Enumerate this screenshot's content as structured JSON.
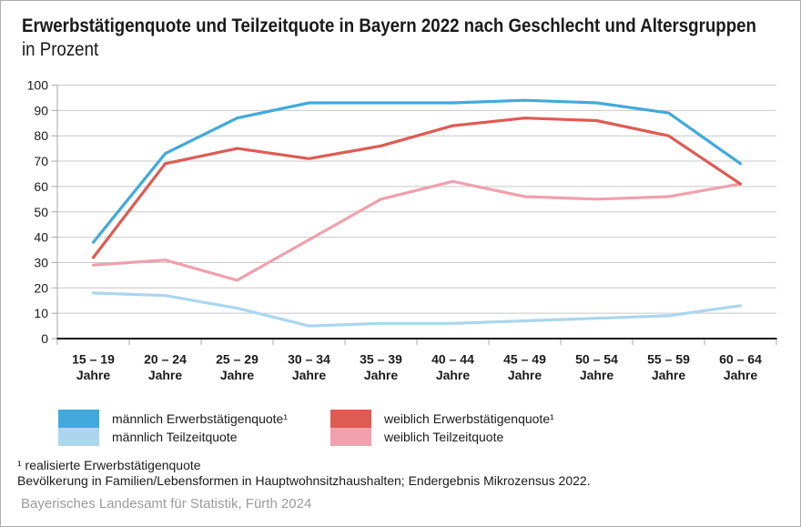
{
  "title": "Erwerbstätigenquote und Teilzeitquote in Bayern 2022 nach Geschlecht und Altersgruppen",
  "subtitle": "in Prozent",
  "chart_data": {
    "type": "line",
    "categories": [
      "15 – 19",
      "20 – 24",
      "25 – 29",
      "30 – 34",
      "35 – 39",
      "40 – 44",
      "45 – 49",
      "50 – 54",
      "55 – 59",
      "60 – 64"
    ],
    "category_unit": "Jahre",
    "series": [
      {
        "name": "männlich Erwerbstätigenquote¹",
        "color": "#42A9DC",
        "values": [
          38,
          73,
          87,
          93,
          93,
          93,
          94,
          93,
          89,
          69
        ]
      },
      {
        "name": "männlich Teilzeitquote",
        "color": "#ABD6EE",
        "values": [
          18,
          17,
          12,
          5,
          6,
          6,
          7,
          8,
          9,
          13
        ]
      },
      {
        "name": "weiblich Erwerbstätigenquote¹",
        "color": "#DE5B52",
        "values": [
          32,
          69,
          75,
          71,
          76,
          84,
          87,
          86,
          80,
          61
        ]
      },
      {
        "name": "weiblich Teilzeitquote",
        "color": "#F1A0AC",
        "values": [
          29,
          31,
          23,
          39,
          55,
          62,
          56,
          55,
          56,
          61
        ]
      }
    ],
    "ylim": [
      0,
      100
    ],
    "ytick_step": 10,
    "grid": true,
    "legend_position": "bottom"
  },
  "footnotes": [
    "¹ realisierte Erwerbstätigenquote",
    "Bevölkerung in Familien/Lebensformen in Hauptwohnsitzhaushalten; Endergebnis Mikrozensus 2022."
  ],
  "source": "Bayerisches Landesamt für Statistik, Fürth 2024"
}
